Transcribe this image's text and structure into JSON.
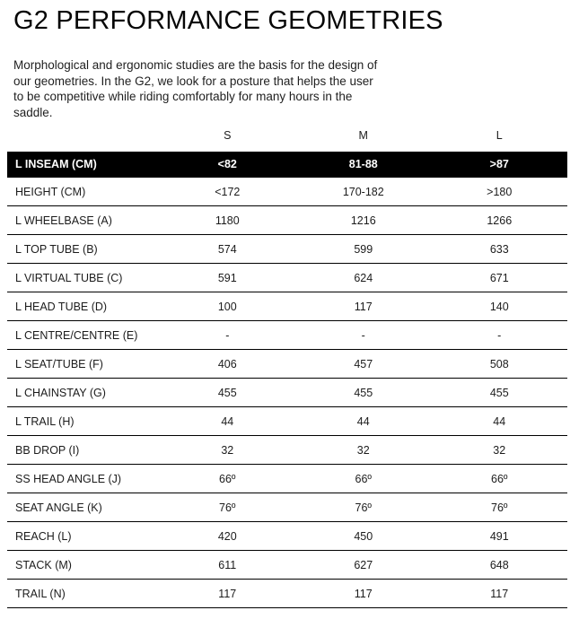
{
  "title": "G2 PERFORMANCE GEOMETRIES",
  "intro_lines": [
    "Morphological and ergonomic studies are the basis for the design of",
    "our geometries. In the G2, we look for a posture that helps the user",
    "to be competitive while riding comfortably for many hours in the",
    "saddle."
  ],
  "colors": {
    "highlight_bg": "#000000",
    "highlight_text": "#ffffff",
    "border": "#000000",
    "text": "#1c1c1c"
  },
  "table": {
    "columns": [
      "S",
      "M",
      "L"
    ],
    "rows": [
      {
        "label": "L INSEAM (CM)",
        "values": [
          "<82",
          "81-88",
          ">87"
        ],
        "highlight": true
      },
      {
        "label": "HEIGHT (CM)",
        "values": [
          "<172",
          "170-182",
          ">180"
        ],
        "highlight": false
      },
      {
        "label": "L WHEELBASE (A)",
        "values": [
          "1180",
          "1216",
          "1266"
        ],
        "highlight": false
      },
      {
        "label": "L TOP TUBE (B)",
        "values": [
          "574",
          "599",
          "633"
        ],
        "highlight": false
      },
      {
        "label": "L VIRTUAL TUBE (C)",
        "values": [
          "591",
          "624",
          "671"
        ],
        "highlight": false
      },
      {
        "label": "L HEAD TUBE (D)",
        "values": [
          "100",
          "117",
          "140"
        ],
        "highlight": false
      },
      {
        "label": "L CENTRE/CENTRE (E)",
        "values": [
          "-",
          "-",
          "-"
        ],
        "highlight": false
      },
      {
        "label": "L SEAT/TUBE (F)",
        "values": [
          "406",
          "457",
          "508"
        ],
        "highlight": false
      },
      {
        "label": "L CHAINSTAY (G)",
        "values": [
          "455",
          "455",
          "455"
        ],
        "highlight": false
      },
      {
        "label": "L TRAIL (H)",
        "values": [
          "44",
          "44",
          "44"
        ],
        "highlight": false
      },
      {
        "label": "BB DROP (I)",
        "values": [
          "32",
          "32",
          "32"
        ],
        "highlight": false
      },
      {
        "label": "SS HEAD ANGLE (J)",
        "values": [
          "66º",
          "66º",
          "66º"
        ],
        "highlight": false
      },
      {
        "label": "SEAT ANGLE (K)",
        "values": [
          "76º",
          "76º",
          "76º"
        ],
        "highlight": false
      },
      {
        "label": "REACH (L)",
        "values": [
          "420",
          "450",
          "491"
        ],
        "highlight": false
      },
      {
        "label": "STACK (M)",
        "values": [
          "611",
          "627",
          "648"
        ],
        "highlight": false
      },
      {
        "label": "TRAIL (N)",
        "values": [
          "117",
          "117",
          "117"
        ],
        "highlight": false
      }
    ]
  }
}
